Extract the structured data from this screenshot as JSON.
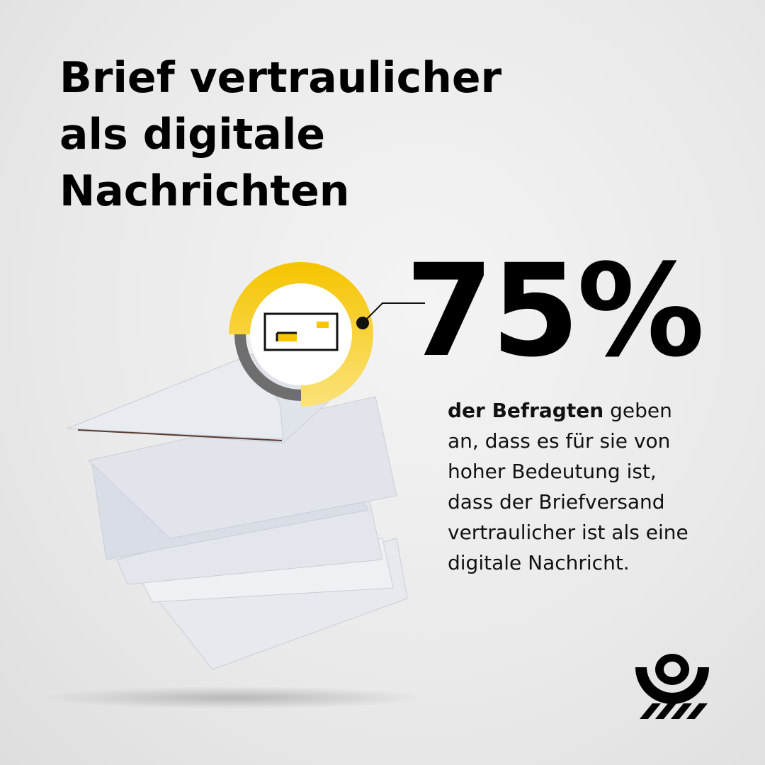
{
  "headline": [
    "Brief vertraulicher",
    "als digitale",
    "Nachrichten"
  ],
  "chart_data": {
    "type": "donut",
    "values": [
      75
    ],
    "value_labels": [
      "75%"
    ],
    "ylim": [
      0,
      100
    ],
    "color": "#f7c600"
  },
  "description": [
    "der Befragten",
    "geben an, dass es für sie von hoher Bedeutung ist, dass der Briefversand vertraulicher ist als eine digitale Nachricht."
  ]
}
